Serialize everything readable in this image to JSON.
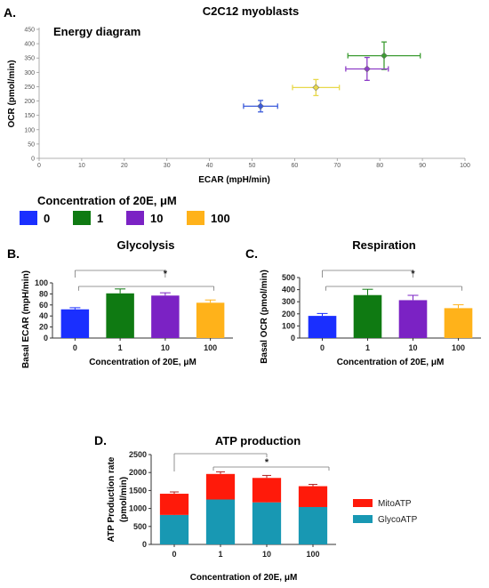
{
  "figure": {
    "legend_title": "Concentration of 20E, μM",
    "legend_items": [
      {
        "label": "0",
        "color": "#1a2fff"
      },
      {
        "label": "1",
        "color": "#0f7a12"
      },
      {
        "label": "10",
        "color": "#7b22c4"
      },
      {
        "label": "100",
        "color": "#ffb21a"
      }
    ]
  },
  "chart_data": [
    {
      "panel": "A.",
      "type": "scatter",
      "title": "C2C12 myoblasts",
      "annotation": "Energy diagram",
      "xlabel": "ECAR (mpH/min)",
      "ylabel": "OCR (pmol/min)",
      "xlim": [
        0,
        100
      ],
      "ylim": [
        0,
        450
      ],
      "xticks": [
        "0",
        "10",
        "20",
        "30",
        "40",
        "50",
        "60",
        "70",
        "80",
        "90",
        "100"
      ],
      "yticks": [
        "0",
        "50",
        "100",
        "150",
        "200",
        "250",
        "300",
        "350",
        "400",
        "450"
      ],
      "points": [
        {
          "group": "0",
          "x": 52,
          "y": 182,
          "xerr": 4,
          "yerr": 20,
          "color": "#3b5bdb"
        },
        {
          "group": "1",
          "x": 81,
          "y": 358,
          "xerr": 8.5,
          "yerr": 48,
          "color": "#3d9c33"
        },
        {
          "group": "10",
          "x": 77,
          "y": 312,
          "xerr": 5,
          "yerr": 40,
          "color": "#8e3ec8"
        },
        {
          "group": "100",
          "x": 65,
          "y": 247,
          "xerr": 5.5,
          "yerr": 28,
          "color": "#e8d84a"
        }
      ]
    },
    {
      "panel": "B.",
      "type": "bar",
      "title": "Glycolysis",
      "xlabel": "Concentration of 20E, μM",
      "ylabel": "Basal ECAR (mpH/min)",
      "ylim": [
        0,
        100
      ],
      "yticks": [
        "0",
        "20",
        "40",
        "60",
        "80",
        "100"
      ],
      "categories": [
        "0",
        "1",
        "10",
        "100"
      ],
      "values": [
        52,
        81,
        77,
        64
      ],
      "errors": [
        3,
        8,
        5,
        5
      ],
      "colors": [
        "#1a2fff",
        "#0f7a12",
        "#7b22c4",
        "#ffb21a"
      ],
      "significance": "*"
    },
    {
      "panel": "C.",
      "type": "bar",
      "title": "Respiration",
      "xlabel": "Concentration of 20E, μM",
      "ylabel": "Basal OCR (pmol/min)",
      "ylim": [
        0,
        500
      ],
      "yticks": [
        "0",
        "100",
        "200",
        "300",
        "400",
        "500"
      ],
      "categories": [
        "0",
        "1",
        "10",
        "100"
      ],
      "values": [
        183,
        355,
        313,
        247
      ],
      "errors": [
        20,
        48,
        40,
        28
      ],
      "colors": [
        "#1a2fff",
        "#0f7a12",
        "#7b22c4",
        "#ffb21a"
      ],
      "significance": "*"
    },
    {
      "panel": "D.",
      "type": "bar",
      "stacked": true,
      "title": "ATP production",
      "xlabel": "Concentration of 20E, μM",
      "ylabel": "ATP Production rate (pmol/min)",
      "ylabel_lines": [
        "ATP Production rate",
        "(pmol/min)"
      ],
      "ylim": [
        0,
        2500
      ],
      "yticks": [
        "0",
        "500",
        "1000",
        "1500",
        "2000",
        "2500"
      ],
      "categories": [
        "0",
        "1",
        "10",
        "100"
      ],
      "series": [
        {
          "name": "GlycoATP",
          "color": "#1898b3",
          "values": [
            820,
            1250,
            1170,
            1040
          ],
          "errors": [
            60,
            130,
            90,
            90
          ]
        },
        {
          "name": "MitoATP",
          "color": "#ff1a0a",
          "values": [
            590,
            710,
            680,
            580
          ],
          "errors": [
            50,
            60,
            70,
            50
          ]
        }
      ],
      "legend_order": [
        "MitoATP",
        "GlycoATP"
      ],
      "significance": "*"
    }
  ]
}
